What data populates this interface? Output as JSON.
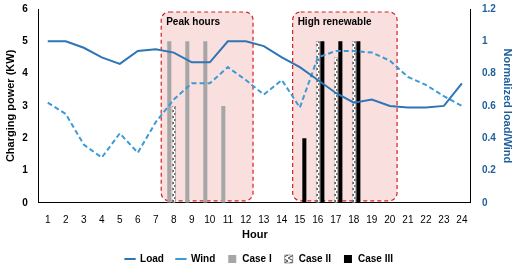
{
  "chart_data": {
    "type": "bar",
    "x_label": "Hour",
    "y_label": "Charging power (KW)",
    "y2_label": "Normalized load/Wind",
    "categories": [
      "1",
      "2",
      "3",
      "4",
      "5",
      "6",
      "7",
      "8",
      "9",
      "10",
      "11",
      "12",
      "13",
      "14",
      "15",
      "16",
      "17",
      "18",
      "19",
      "20",
      "21",
      "22",
      "23",
      "24"
    ],
    "ylim": [
      0,
      6
    ],
    "yticks": [
      0,
      1,
      2,
      3,
      4,
      5,
      6
    ],
    "y2lim": [
      0,
      1.2
    ],
    "y2ticks": [
      0,
      0.2,
      0.4,
      0.6,
      0.8,
      1,
      1.2
    ],
    "grid": false,
    "legend": "bottom",
    "annotations": [
      {
        "text": "Peak hours",
        "x_range": [
          7.3,
          12.4
        ]
      },
      {
        "text": "High renewable",
        "x_range": [
          14.6,
          20.4
        ]
      }
    ],
    "series": [
      {
        "name": "Case I",
        "type": "bar",
        "color": "#a6a6a6",
        "values": [
          null,
          null,
          null,
          null,
          null,
          null,
          null,
          5,
          5,
          5,
          3,
          null,
          null,
          null,
          null,
          null,
          null,
          null,
          null,
          null,
          null,
          null,
          null,
          null
        ]
      },
      {
        "name": "Case II",
        "type": "bar",
        "color": "#404040",
        "marker": "zigzag",
        "values": [
          null,
          null,
          null,
          null,
          null,
          null,
          null,
          3,
          null,
          null,
          null,
          null,
          null,
          null,
          null,
          5,
          4.5,
          5,
          null,
          null,
          null,
          null,
          null,
          null
        ]
      },
      {
        "name": "Case III",
        "type": "bar",
        "color": "#000000",
        "values": [
          null,
          null,
          null,
          null,
          null,
          null,
          null,
          null,
          null,
          null,
          null,
          null,
          null,
          null,
          2,
          5,
          5,
          5,
          null,
          null,
          null,
          null,
          null,
          null
        ]
      },
      {
        "name": "Load",
        "type": "line",
        "axis": "y2",
        "color": "#2e75b6",
        "line_style": "solid",
        "values": [
          1.0,
          1.0,
          0.96,
          0.9,
          0.86,
          0.94,
          0.95,
          0.93,
          0.87,
          0.87,
          1.0,
          1.0,
          0.97,
          0.9,
          0.84,
          0.76,
          0.68,
          0.62,
          0.64,
          0.6,
          0.59,
          0.59,
          0.6,
          0.74
        ]
      },
      {
        "name": "Wind",
        "type": "line",
        "axis": "y2",
        "color": "#3c9ad6",
        "line_style": "dashed",
        "values": [
          0.62,
          0.55,
          0.36,
          0.28,
          0.43,
          0.31,
          0.5,
          0.64,
          0.74,
          0.74,
          0.84,
          0.76,
          0.67,
          0.76,
          0.59,
          0.9,
          0.94,
          0.94,
          0.93,
          0.88,
          0.78,
          0.73,
          0.66,
          0.6
        ]
      }
    ]
  }
}
